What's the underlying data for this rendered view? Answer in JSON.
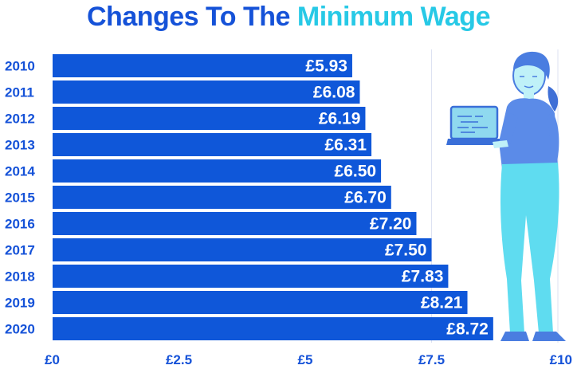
{
  "title": {
    "part1": "Changes To The",
    "part2": "Minimum Wage"
  },
  "colors": {
    "bar": "#0f57d9",
    "title_dark": "#1552d8",
    "title_accent": "#27c9e6",
    "axis_text": "#1552d8",
    "figure_shirt": "#5b8be8",
    "figure_pants": "#5fdcf0",
    "figure_skin": "#bff1f8"
  },
  "chart_data": {
    "type": "bar",
    "orientation": "horizontal",
    "title": "Changes To The Minimum Wage",
    "categories": [
      "2010",
      "2011",
      "2012",
      "2013",
      "2014",
      "2015",
      "2016",
      "2017",
      "2018",
      "2019",
      "2020"
    ],
    "values": [
      5.93,
      6.08,
      6.19,
      6.31,
      6.5,
      6.7,
      7.2,
      7.5,
      7.83,
      8.21,
      8.72
    ],
    "value_labels": [
      "£5.93",
      "£6.08",
      "£6.19",
      "£6.31",
      "£6.50",
      "£6.70",
      "£7.20",
      "£7.50",
      "£7.83",
      "£8.21",
      "£8.72"
    ],
    "xlim": [
      0,
      10
    ],
    "x_ticks": [
      0,
      2.5,
      5,
      7.5,
      10
    ],
    "x_tick_labels": [
      "£0",
      "£2.5",
      "£5",
      "£7.5",
      "£10"
    ],
    "xlabel": "",
    "ylabel": "",
    "grid": "vertical lines at £7.5 and £10"
  },
  "illustration": {
    "icon": "woman-holding-laptop-icon"
  }
}
